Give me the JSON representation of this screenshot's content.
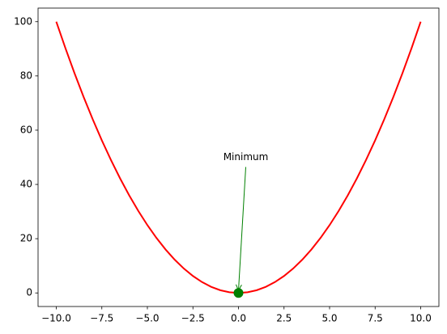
{
  "chart_data": {
    "type": "line",
    "x": [
      -10,
      -9.5,
      -9,
      -8.5,
      -8,
      -7.5,
      -7,
      -6.5,
      -6,
      -5.5,
      -5,
      -4.5,
      -4,
      -3.5,
      -3,
      -2.5,
      -2,
      -1.5,
      -1,
      -0.5,
      0,
      0.5,
      1,
      1.5,
      2,
      2.5,
      3,
      3.5,
      4,
      4.5,
      5,
      5.5,
      6,
      6.5,
      7,
      7.5,
      8,
      8.5,
      9,
      9.5,
      10
    ],
    "series": [
      {
        "color": "#ff0000",
        "values": [
          100,
          90.25,
          81,
          72.25,
          64,
          56.25,
          49,
          42.25,
          36,
          30.25,
          25,
          20.25,
          16,
          12.25,
          9,
          6.25,
          4,
          2.25,
          1,
          0.25,
          0,
          0.25,
          1,
          2.25,
          4,
          6.25,
          9,
          12.25,
          16,
          20.25,
          25,
          30.25,
          36,
          42.25,
          49,
          56.25,
          64,
          72.25,
          81,
          90.25,
          100
        ]
      }
    ],
    "points": {
      "color": "#008000",
      "x": [
        0
      ],
      "values": [
        0
      ]
    },
    "annotation": {
      "text": "Minimum",
      "xy": [
        0,
        0
      ],
      "xytext": [
        0.4,
        50
      ],
      "color": "#008000"
    },
    "xlim": [
      -11,
      11
    ],
    "ylim": [
      -5,
      105
    ],
    "xticks": [
      {
        "value": -10,
        "label": "−10.0"
      },
      {
        "value": -7.5,
        "label": "−7.5"
      },
      {
        "value": -5,
        "label": "−5.0"
      },
      {
        "value": -2.5,
        "label": "−2.5"
      },
      {
        "value": 0,
        "label": "0.0"
      },
      2.5,
      {
        "value": 5,
        "label": "5.0"
      },
      7.5,
      {
        "value": 10,
        "label": "10.0"
      }
    ],
    "yticks": [
      0,
      20,
      40,
      60,
      80,
      100
    ],
    "grid": false
  }
}
